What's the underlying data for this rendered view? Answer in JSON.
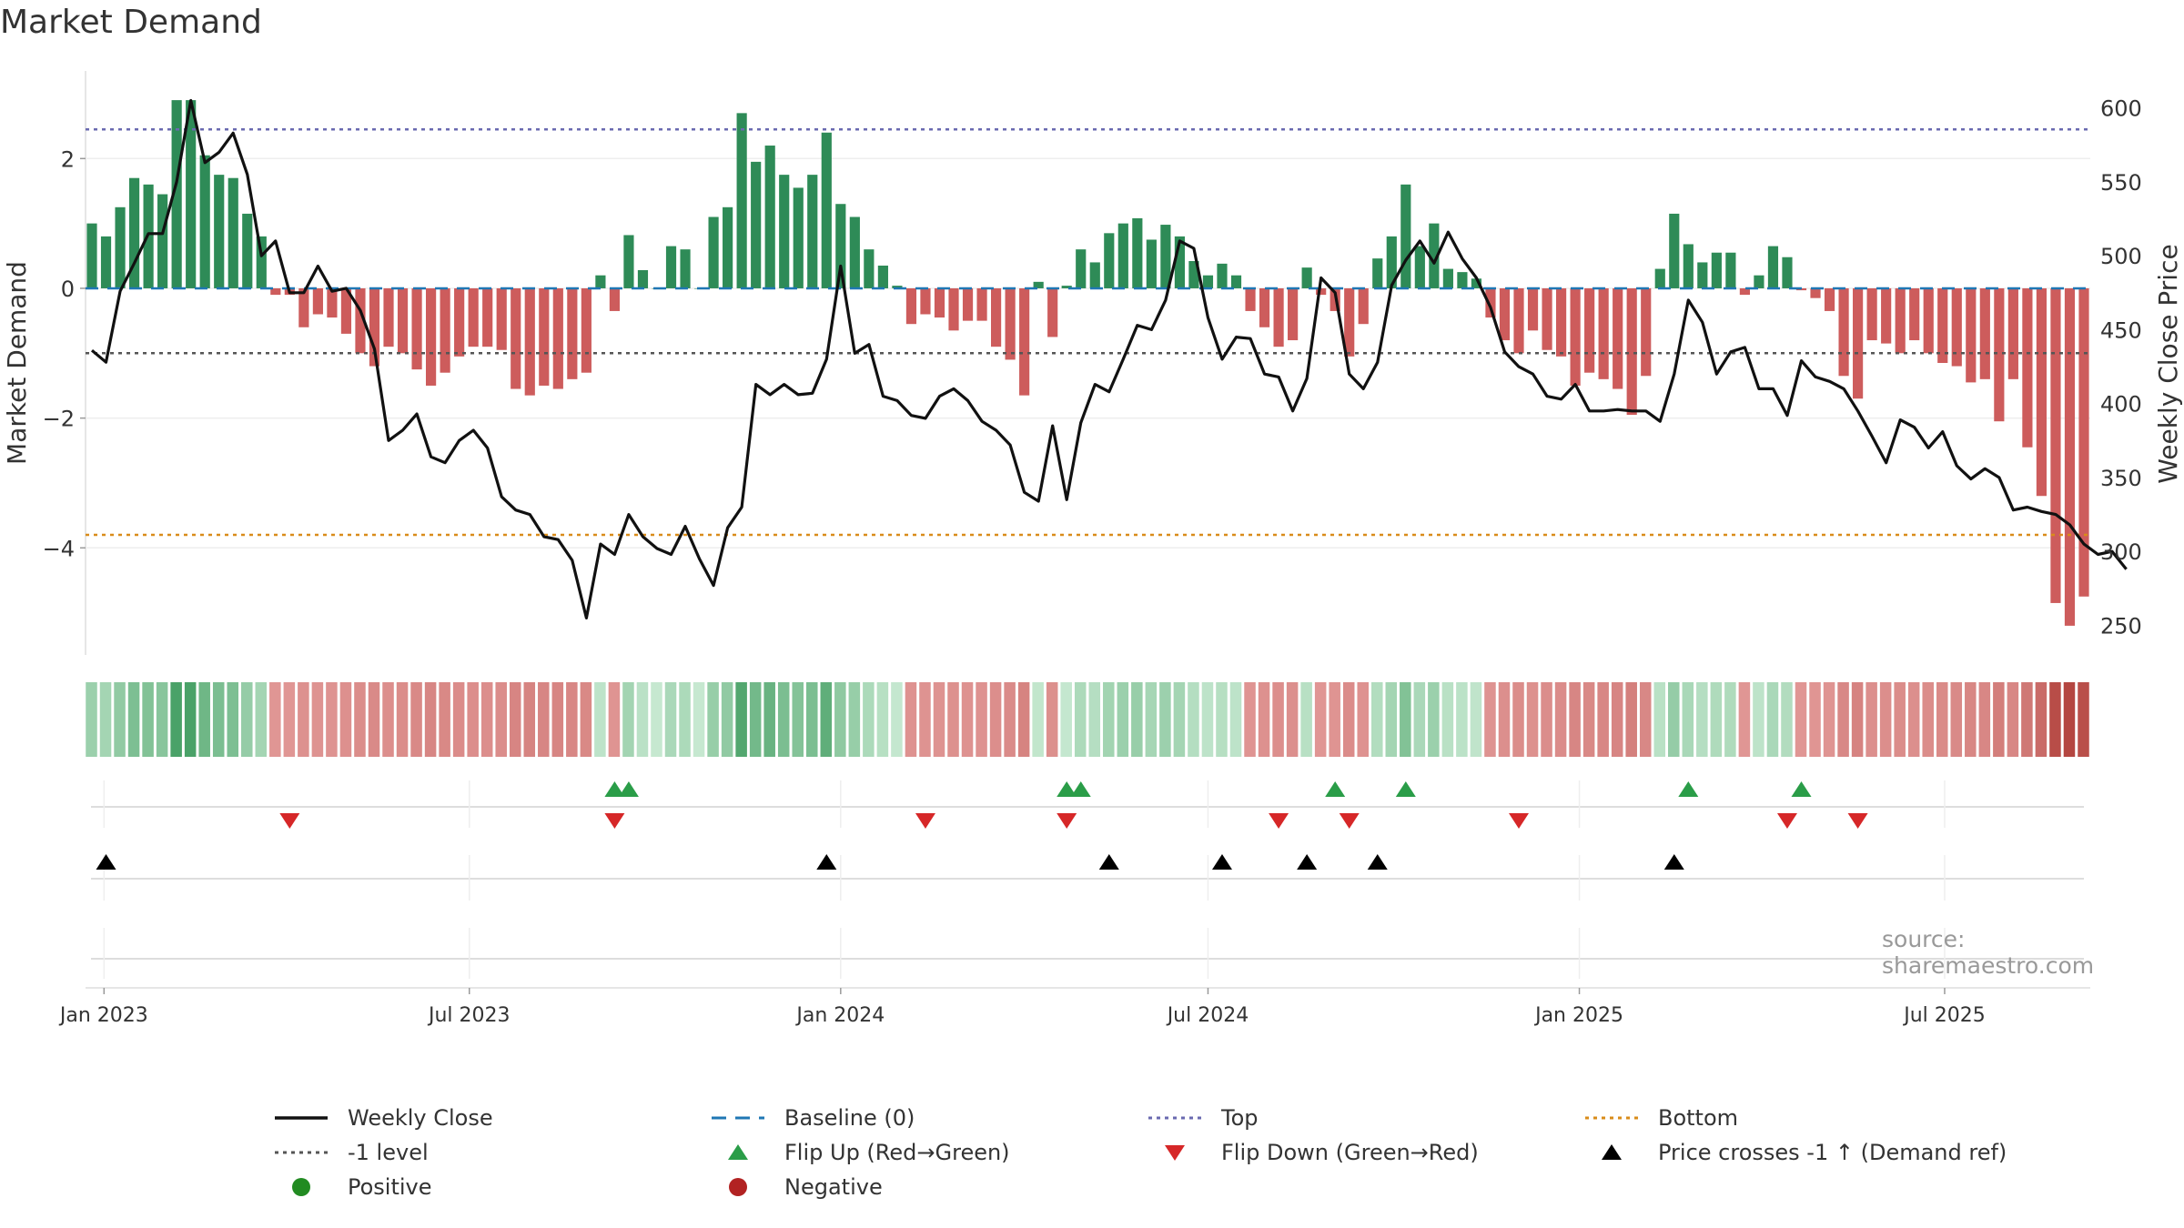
{
  "title": "Market Demand",
  "source": "source: sharemaestro.com",
  "colors": {
    "positive_bar": "#2e8b57",
    "negative_bar": "#cd5c5c",
    "close_line": "#111111",
    "baseline": "#1f77b4",
    "top": "#6a6ab0",
    "bottom": "#d98c1a",
    "minus1": "#555555",
    "flip_up": "#2a9d48",
    "flip_down": "#d62728",
    "cross": "#000000",
    "positive_dot": "#228b22",
    "negative_dot": "#b22222"
  },
  "chart_data": {
    "type": "bar+line",
    "title": "Market Demand",
    "ylabel_left": "Market Demand",
    "ylabel_right": "Weekly Close Price",
    "ylim_left": [
      -5.65,
      3.35
    ],
    "ylim_right": [
      230,
      625
    ],
    "yticks_left": [
      2,
      0,
      -2,
      -4
    ],
    "yticks_right": [
      600,
      550,
      500,
      450,
      400,
      350,
      300,
      250
    ],
    "yticks_left_labels": [
      "2",
      "0",
      "−2",
      "−4"
    ],
    "x_start": "2022-12-26",
    "x_step_days": 7,
    "xticks": [
      {
        "label": "Jan 2023",
        "date": "2023-01-01"
      },
      {
        "label": "Jul 2023",
        "date": "2023-07-01"
      },
      {
        "label": "Jan 2024",
        "date": "2024-01-01"
      },
      {
        "label": "Jul 2024",
        "date": "2024-07-01"
      },
      {
        "label": "Jan 2025",
        "date": "2025-01-01"
      },
      {
        "label": "Jul 2025",
        "date": "2025-07-01"
      }
    ],
    "reference_lines": {
      "top": 2.45,
      "bottom": -3.8,
      "minus1": -1.0,
      "baseline": 0
    },
    "demand": [
      1.0,
      0.8,
      1.25,
      1.7,
      1.6,
      1.45,
      2.9,
      2.9,
      2.05,
      1.75,
      1.7,
      1.15,
      0.8,
      -0.1,
      -0.1,
      -0.6,
      -0.4,
      -0.45,
      -0.7,
      -1.0,
      -1.2,
      -0.9,
      -1.0,
      -1.25,
      -1.5,
      -1.3,
      -1.05,
      -0.9,
      -0.9,
      -0.95,
      -1.55,
      -1.65,
      -1.5,
      -1.55,
      -1.4,
      -1.3,
      0.2,
      -0.35,
      0.82,
      0.28,
      0.0,
      0.65,
      0.6,
      0.0,
      1.1,
      1.25,
      2.7,
      1.95,
      2.2,
      1.75,
      1.55,
      1.75,
      2.4,
      1.3,
      1.1,
      0.6,
      0.35,
      0.04,
      -0.55,
      -0.4,
      -0.45,
      -0.65,
      -0.5,
      -0.5,
      -0.9,
      -1.1,
      -1.65,
      0.1,
      -0.75,
      0.04,
      0.6,
      0.4,
      0.85,
      1.0,
      1.08,
      0.75,
      0.98,
      0.8,
      0.42,
      0.2,
      0.38,
      0.2,
      -0.35,
      -0.6,
      -0.9,
      -0.8,
      0.32,
      -0.1,
      -0.35,
      -1.05,
      -0.55,
      0.46,
      0.8,
      1.6,
      0.65,
      1.0,
      0.3,
      0.25,
      0.15,
      -0.45,
      -0.8,
      -1.0,
      -0.65,
      -0.95,
      -1.05,
      -1.5,
      -1.3,
      -1.4,
      -1.55,
      -1.95,
      -1.35,
      0.3,
      1.15,
      0.68,
      0.4,
      0.55,
      0.55,
      -0.1,
      0.2,
      0.65,
      0.48,
      -0.03,
      -0.15,
      -0.35,
      -1.35,
      -1.7,
      -0.8,
      -0.85,
      -1.0,
      -0.8,
      -1.0,
      -1.15,
      -1.2,
      -1.45,
      -1.4,
      -2.05,
      -1.4,
      -2.45,
      -3.2,
      -4.85,
      -5.2,
      -4.75
    ],
    "weekly_close": [
      436,
      428,
      476,
      495,
      515,
      515,
      550,
      605,
      563,
      570,
      583,
      555,
      500,
      510,
      475,
      475,
      493,
      476,
      478,
      463,
      437,
      375,
      382,
      393,
      364,
      360,
      375,
      382,
      370,
      337,
      328,
      325,
      310,
      308,
      294,
      255,
      305,
      298,
      325,
      310,
      302,
      298,
      317,
      295,
      277,
      316,
      330,
      413,
      406,
      413,
      406,
      407,
      430,
      493,
      434,
      440,
      405,
      402,
      392,
      390,
      405,
      410,
      402,
      388,
      382,
      372,
      340,
      334,
      385,
      335,
      387,
      413,
      408,
      430,
      453,
      450,
      470,
      510,
      505,
      458,
      430,
      445,
      444,
      420,
      418,
      395,
      417,
      485,
      475,
      420,
      410,
      428,
      480,
      497,
      510,
      495,
      516,
      498,
      485,
      465,
      435,
      425,
      420,
      405,
      403,
      413,
      395,
      395,
      396,
      395,
      395,
      388,
      420,
      470,
      455,
      420,
      435,
      438,
      410,
      410,
      392,
      429,
      418,
      415,
      410,
      395,
      378,
      360,
      389,
      384,
      370,
      381,
      358,
      349,
      356,
      350,
      328,
      330,
      327,
      325,
      318,
      305,
      298,
      300,
      288
    ],
    "flip_up": [
      37,
      38,
      69,
      70,
      88,
      93,
      113,
      121
    ],
    "flip_down": [
      14,
      37,
      59,
      69,
      84,
      89,
      101,
      120,
      125
    ],
    "price_crosses": [
      1,
      52,
      72,
      80,
      86,
      91,
      112
    ]
  },
  "legend": [
    {
      "label": "Weekly Close",
      "symbol": "line-solid",
      "color": "#111111"
    },
    {
      "label": "Baseline (0)",
      "symbol": "line-dashed",
      "color": "#1f77b4"
    },
    {
      "label": "Top",
      "symbol": "line-dotted",
      "color": "#6a6ab0"
    },
    {
      "label": "Bottom",
      "symbol": "line-dotted",
      "color": "#d98c1a"
    },
    {
      "label": "-1 level",
      "symbol": "line-dotted",
      "color": "#555555"
    },
    {
      "label": "Flip Up (Red→Green)",
      "symbol": "triangle-up",
      "color": "#2a9d48"
    },
    {
      "label": "Flip Down (Green→Red)",
      "symbol": "triangle-down",
      "color": "#d62728"
    },
    {
      "label": "Price crosses -1 ↑ (Demand ref)",
      "symbol": "triangle-up",
      "color": "#000000"
    },
    {
      "label": "Positive",
      "symbol": "dot",
      "color": "#228b22"
    },
    {
      "label": "Negative",
      "symbol": "dot",
      "color": "#b22222"
    }
  ]
}
